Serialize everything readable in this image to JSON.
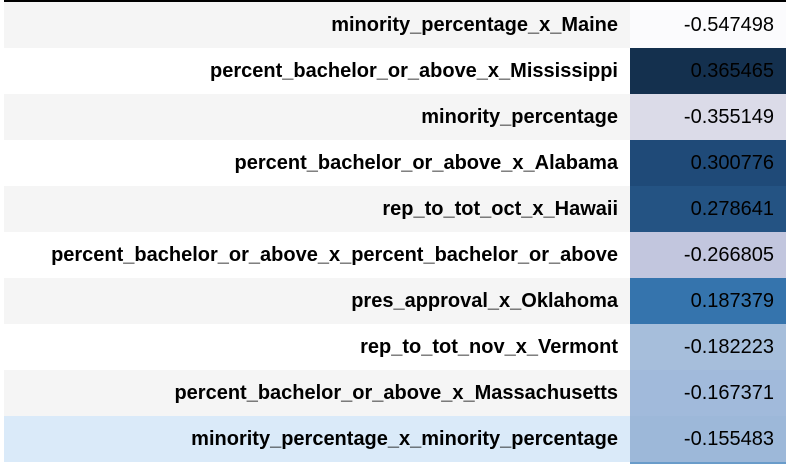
{
  "table": {
    "rows": [
      {
        "label": "minority_percentage_x_Maine",
        "value": "-0.547498",
        "cell_color": "#fbfbfd"
      },
      {
        "label": "percent_bachelor_or_above_x_Mississippi",
        "value": "0.365465",
        "cell_color": "#14304e"
      },
      {
        "label": "minority_percentage",
        "value": "-0.355149",
        "cell_color": "#dbdbe8"
      },
      {
        "label": "percent_bachelor_or_above_x_Alabama",
        "value": "0.300776",
        "cell_color": "#1f4a78"
      },
      {
        "label": "rep_to_tot_oct_x_Hawaii",
        "value": "0.278641",
        "cell_color": "#245383"
      },
      {
        "label": "percent_bachelor_or_above_x_percent_bachelor_or_above",
        "value": "-0.266805",
        "cell_color": "#c2c6de"
      },
      {
        "label": "pres_approval_x_Oklahoma",
        "value": "0.187379",
        "cell_color": "#3574ad"
      },
      {
        "label": "rep_to_tot_nov_x_Vermont",
        "value": "-0.182223",
        "cell_color": "#a6bedb"
      },
      {
        "label": "percent_bachelor_or_above_x_Massachusetts",
        "value": "-0.167371",
        "cell_color": "#a1badb"
      },
      {
        "label": "minority_percentage_x_minority_percentage",
        "value": "-0.155483",
        "cell_color": "#9db8d9"
      }
    ],
    "highlighted_row": 9
  }
}
